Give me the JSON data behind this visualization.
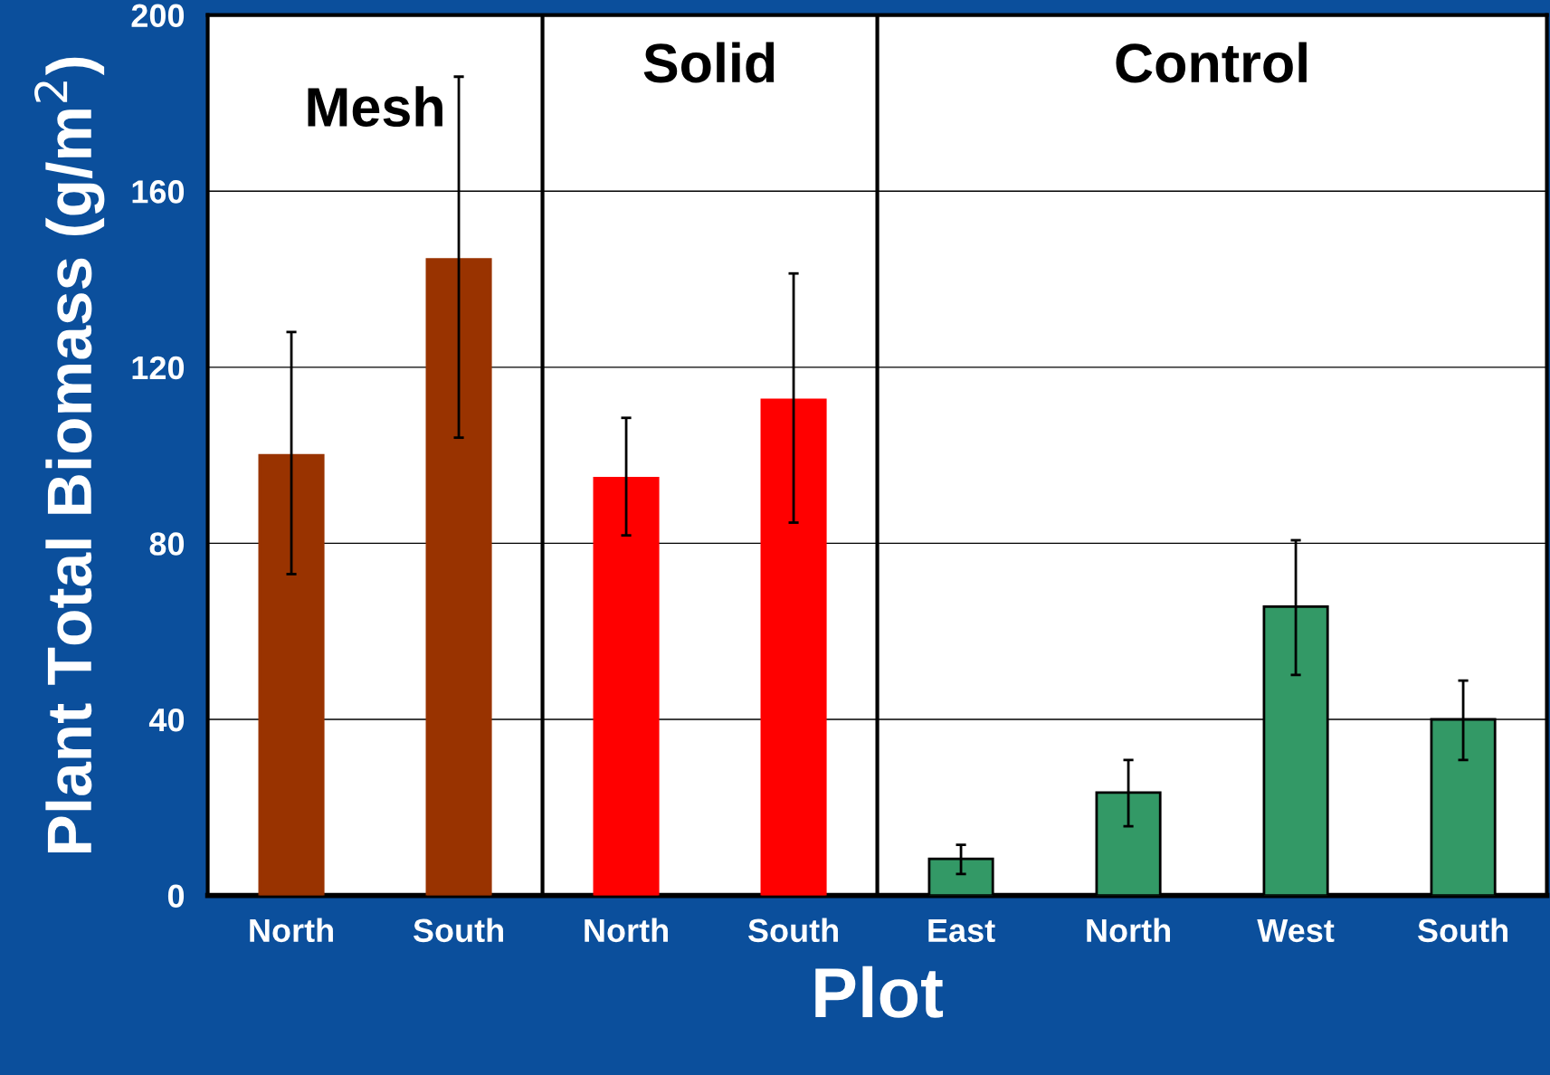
{
  "chart_data": {
    "type": "bar",
    "xlabel": "Plot",
    "ylabel": "Plant Total Biomass (g/m$^{2}$)",
    "categories": [
      "North",
      "South",
      "North",
      "South",
      "East",
      "North",
      "West",
      "South"
    ],
    "values": [
      100,
      144.5,
      94.8,
      112.6,
      8.3,
      23.4,
      65.6,
      40
    ],
    "errors": [
      [
        73,
        128
      ],
      [
        104,
        186
      ],
      [
        81.8,
        108.5
      ],
      [
        84.7,
        141.3
      ],
      [
        4.9,
        11.5
      ],
      [
        15.7,
        30.8
      ],
      [
        50.1,
        80.7
      ],
      [
        30.8,
        48.8
      ]
    ],
    "colors": [
      "#993300",
      "#993300",
      "#ff0000",
      "#ff0000",
      "#339966",
      "#339966",
      "#339966",
      "#339966"
    ],
    "ylim": [
      0,
      200
    ],
    "yticks": [
      0,
      40,
      80,
      120,
      160,
      200
    ],
    "grid": "y",
    "annotations": [
      "Mesh",
      "Solid",
      "Control"
    ]
  }
}
